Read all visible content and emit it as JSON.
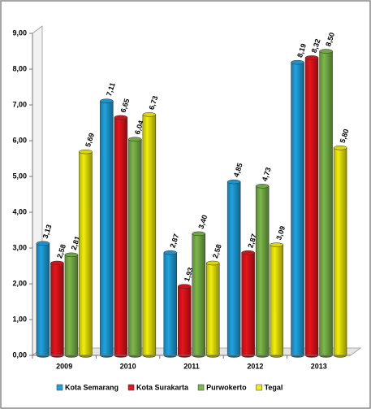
{
  "chart_data": {
    "type": "bar",
    "categories": [
      "2009",
      "2010",
      "2011",
      "2012",
      "2013"
    ],
    "series": [
      {
        "name": "Kota Semarang",
        "color": "#1fa3e0",
        "values": [
          3.13,
          7.11,
          2.87,
          4.85,
          8.19
        ],
        "value_labels": [
          "3,13",
          "7,11",
          "2,87",
          "4,85",
          "8,19"
        ]
      },
      {
        "name": "Kota Surakarta",
        "color": "#e8141b",
        "values": [
          2.58,
          6.65,
          1.93,
          2.87,
          8.32
        ],
        "value_labels": [
          "2,58",
          "6,65",
          "1,93",
          "2,87",
          "8,32"
        ]
      },
      {
        "name": "Purwokerto",
        "color": "#7cb84a",
        "values": [
          2.81,
          6.04,
          3.4,
          4.73,
          8.5
        ],
        "value_labels": [
          "2,81",
          "6,04",
          "3,40",
          "4,73",
          "8,50"
        ]
      },
      {
        "name": "Tegal",
        "color": "#f2ee0a",
        "values": [
          5.69,
          6.73,
          2.58,
          3.09,
          5.8
        ],
        "value_labels": [
          "5,69",
          "6,73",
          "2,58",
          "3,09",
          "5,80"
        ]
      }
    ],
    "ylim": [
      0,
      9
    ],
    "yticks": [
      {
        "value": 0,
        "label": "0,00"
      },
      {
        "value": 1,
        "label": "1,00"
      },
      {
        "value": 2,
        "label": "2,00"
      },
      {
        "value": 3,
        "label": "3,00"
      },
      {
        "value": 4,
        "label": "4,00"
      },
      {
        "value": 5,
        "label": "5,00"
      },
      {
        "value": 6,
        "label": "6,00"
      },
      {
        "value": 7,
        "label": "7,00"
      },
      {
        "value": 8,
        "label": "8,00"
      },
      {
        "value": 9,
        "label": "9,00"
      }
    ],
    "grid": false
  }
}
